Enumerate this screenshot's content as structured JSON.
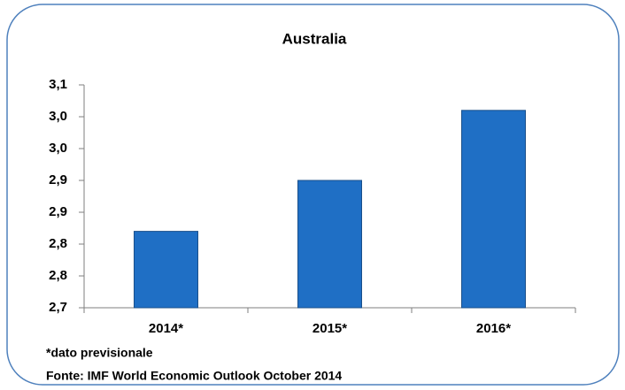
{
  "chart_data": {
    "type": "bar",
    "title": "Australia",
    "categories": [
      "2014*",
      "2015*",
      "2016*"
    ],
    "values": [
      2.82,
      2.9,
      3.01
    ],
    "color": "#1f6fc5",
    "ylim": [
      2.7,
      3.05
    ],
    "yticks": [
      {
        "value": 2.7,
        "label": "2,7"
      },
      {
        "value": 2.75,
        "label": "2,8"
      },
      {
        "value": 2.8,
        "label": "2,8"
      },
      {
        "value": 2.85,
        "label": "2,9"
      },
      {
        "value": 2.9,
        "label": "2,9"
      },
      {
        "value": 2.95,
        "label": "3,0"
      },
      {
        "value": 3.0,
        "label": "3,0"
      },
      {
        "value": 3.05,
        "label": "3,1"
      }
    ],
    "grid": false,
    "annotations": [
      "*dato previsionale",
      "Fonte: IMF World Economic Outlook October 2014"
    ]
  }
}
